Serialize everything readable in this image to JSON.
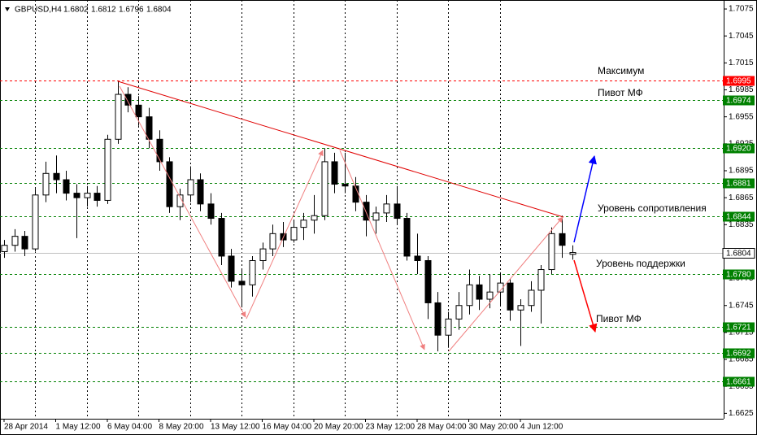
{
  "chart_data": {
    "type": "candlestick",
    "title": "GBPUSD,H4",
    "categories": [
      "28 Apr 2014",
      null,
      null,
      null,
      null,
      "1 May 12:00",
      null,
      null,
      null,
      null,
      "6 May 04:00",
      null,
      null,
      null,
      null,
      "8 May 20:00",
      null,
      null,
      null,
      null,
      "13 May 12:00",
      null,
      null,
      null,
      null,
      "16 May 04:00",
      null,
      null,
      null,
      null,
      "20 May 20:00",
      null,
      null,
      null,
      null,
      "23 May 12:00",
      null,
      null,
      null,
      null,
      "28 May 04:00",
      null,
      null,
      null,
      null,
      "30 May 20:00",
      null,
      null,
      null,
      null,
      "4 Jun 12:00",
      null,
      null,
      null,
      null,
      null
    ],
    "open": [
      1.6805,
      1.6812,
      1.6822,
      1.6808,
      1.6868,
      1.6892,
      1.6885,
      1.687,
      1.6865,
      1.687,
      1.6862,
      1.693,
      1.698,
      1.6968,
      1.6955,
      1.693,
      1.6905,
      1.6855,
      1.6868,
      1.6885,
      1.6858,
      1.6842,
      1.68,
      1.6772,
      1.6768,
      1.6795,
      1.6808,
      1.6825,
      1.6818,
      1.6832,
      1.684,
      1.6845,
      1.6905,
      1.688,
      1.6878,
      1.686,
      1.684,
      1.6848,
      1.6858,
      1.6842,
      1.68,
      1.6795,
      1.6748,
      1.6712,
      1.673,
      1.6745,
      1.6768,
      1.6752,
      1.676,
      1.677,
      1.674,
      1.6745,
      1.6762,
      1.6785,
      1.6825,
      1.6802
    ],
    "high": [
      1.6818,
      1.683,
      1.6828,
      1.6875,
      1.6905,
      1.6912,
      1.6895,
      1.688,
      1.6878,
      1.6878,
      1.6935,
      1.6995,
      1.6988,
      1.6978,
      1.6965,
      1.694,
      1.691,
      1.6875,
      1.69,
      1.6892,
      1.687,
      1.6848,
      1.6808,
      1.6785,
      1.68,
      1.6815,
      1.6835,
      1.6838,
      1.684,
      1.6848,
      1.6868,
      1.692,
      1.6915,
      1.6915,
      1.6888,
      1.6868,
      1.6855,
      1.6868,
      1.6878,
      1.6848,
      1.6825,
      1.68,
      1.676,
      1.6738,
      1.676,
      1.6785,
      1.6778,
      1.678,
      1.6782,
      1.6775,
      1.6752,
      1.6772,
      1.679,
      1.6832,
      1.6845,
      1.6812
    ],
    "low": [
      1.6798,
      1.6805,
      1.68,
      1.6805,
      1.686,
      1.687,
      1.6862,
      1.682,
      1.6855,
      1.6855,
      1.6858,
      1.6925,
      1.696,
      1.6945,
      1.692,
      1.6895,
      1.6848,
      1.684,
      1.686,
      1.685,
      1.6835,
      1.679,
      1.6765,
      1.6743,
      1.6755,
      1.6785,
      1.68,
      1.681,
      1.6815,
      1.6818,
      1.6825,
      1.684,
      1.687,
      1.687,
      1.685,
      1.6822,
      1.6825,
      1.6838,
      1.6835,
      1.6795,
      1.678,
      1.673,
      1.6694,
      1.6698,
      1.6718,
      1.6735,
      1.674,
      1.6742,
      1.6745,
      1.6728,
      1.67,
      1.6738,
      1.6725,
      1.678,
      1.6798,
      1.6796
    ],
    "close": [
      1.6812,
      1.6822,
      1.6808,
      1.6868,
      1.6892,
      1.6885,
      1.687,
      1.6865,
      1.687,
      1.6862,
      1.693,
      1.698,
      1.6968,
      1.6955,
      1.693,
      1.6905,
      1.6855,
      1.6868,
      1.6885,
      1.6858,
      1.6842,
      1.68,
      1.6772,
      1.6768,
      1.6795,
      1.6808,
      1.6825,
      1.6818,
      1.6832,
      1.684,
      1.6845,
      1.6905,
      1.688,
      1.6878,
      1.686,
      1.684,
      1.6848,
      1.6858,
      1.6842,
      1.68,
      1.6795,
      1.6748,
      1.6712,
      1.673,
      1.6745,
      1.6768,
      1.6752,
      1.676,
      1.677,
      1.674,
      1.6745,
      1.6762,
      1.6785,
      1.6825,
      1.6812,
      1.6804
    ],
    "up_color": "#ffffff",
    "down_color": "#000000",
    "ylim": [
      1.6619,
      1.7085
    ],
    "yticks": [
      1.7075,
      1.7045,
      1.7015,
      1.6985,
      1.6955,
      1.6925,
      1.6895,
      1.6865,
      1.6835,
      1.6805,
      1.6775,
      1.6745,
      1.6715,
      1.6685,
      1.6655,
      1.6625
    ],
    "levels": [
      {
        "value": 1.6995,
        "color": "#ff0000"
      },
      {
        "value": 1.6974,
        "color": "#008000"
      },
      {
        "value": 1.692,
        "label": "1.6920",
        "color": "#008000"
      },
      {
        "value": 1.6881,
        "color": "#008000"
      },
      {
        "value": 1.6844,
        "color": "#008000"
      },
      {
        "value": 1.678,
        "label": "1.6780",
        "color": "#008000"
      },
      {
        "value": 1.6721,
        "color": "#008000"
      },
      {
        "value": 1.6692,
        "color": "#008000"
      },
      {
        "value": 1.6661,
        "color": "#008000"
      }
    ],
    "annotations": [
      "Максимум",
      "Пивот МФ",
      "Уровень сопротивления",
      "Уровень поддержки",
      "Пивот МФ"
    ]
  }
}
